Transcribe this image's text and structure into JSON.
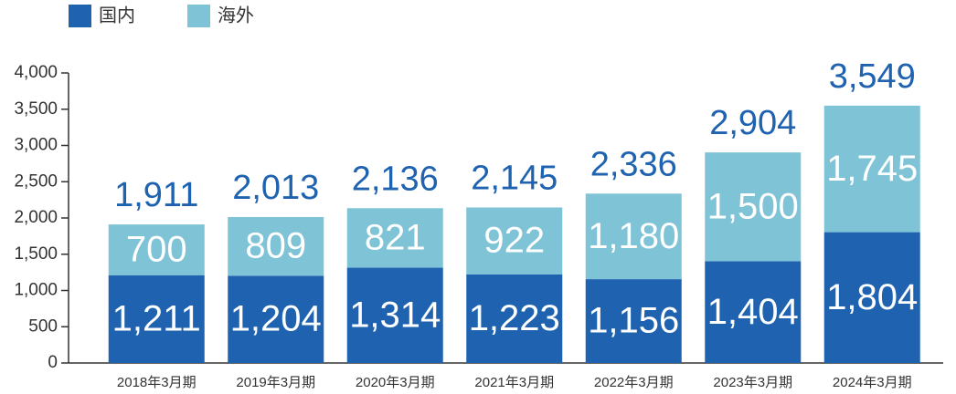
{
  "chart_data": {
    "type": "stacked-bar",
    "categories": [
      "2018年3月期",
      "2019年3月期",
      "2020年3月期",
      "2021年3月期",
      "2022年3月期",
      "2023年3月期",
      "2024年3月期"
    ],
    "series": [
      {
        "name": "国内",
        "color": "#1f63b0",
        "values": [
          1211,
          1204,
          1314,
          1223,
          1156,
          1404,
          1804
        ],
        "value_labels": [
          "1,211",
          "1,204",
          "1,314",
          "1,223",
          "1,156",
          "1,404",
          "1,804"
        ]
      },
      {
        "name": "海外",
        "color": "#7fc3d6",
        "values": [
          700,
          809,
          821,
          922,
          1180,
          1500,
          1745
        ],
        "value_labels": [
          "700",
          "809",
          "821",
          "922",
          "1,180",
          "1,500",
          "1,745"
        ]
      }
    ],
    "total_labels": [
      "1,911",
      "2,013",
      "2,136",
      "2,145",
      "2,336",
      "2,904",
      "3,549"
    ],
    "total_color": "#1f63b0",
    "ylim": [
      0,
      4000
    ],
    "yticks": [
      0,
      500,
      {
        "value": 1000,
        "label": "1,000"
      },
      {
        "value": 1500,
        "label": "1,500"
      },
      {
        "value": 2000,
        "label": "2,000"
      },
      {
        "value": 2500,
        "label": "2,500"
      },
      {
        "value": 3000,
        "label": "3,000"
      },
      {
        "value": 3500,
        "label": "3,500"
      },
      {
        "value": 4000,
        "label": "4,000"
      }
    ],
    "legend": "top-left"
  }
}
